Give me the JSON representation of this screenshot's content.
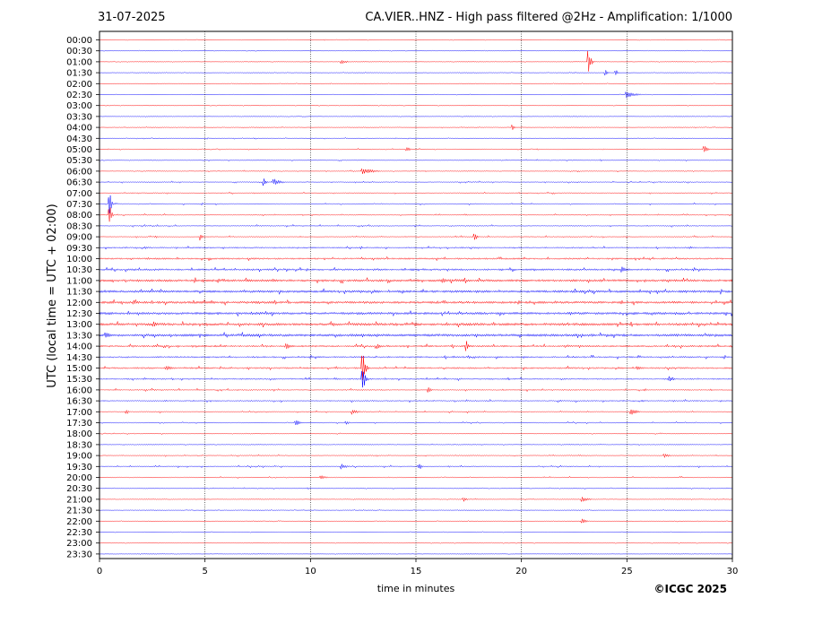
{
  "header": {
    "date": "31-07-2025",
    "title": "CA.VIER..HNZ - High pass filtered @2Hz - Amplification: 1/1000"
  },
  "copyright": "©ICGC 2025",
  "chart_data": {
    "type": "line",
    "subtype": "helicorder",
    "xlabel": "time in minutes",
    "ylabel": "UTC (local time = UTC + 02:00)",
    "xlim": [
      0,
      30
    ],
    "xticks": [
      0,
      5,
      10,
      15,
      20,
      25,
      30
    ],
    "vertical_gridlines_at": [
      5,
      10,
      15,
      20,
      25
    ],
    "row_labels": [
      "00:00",
      "00:30",
      "01:00",
      "01:30",
      "02:00",
      "02:30",
      "03:00",
      "03:30",
      "04:00",
      "04:30",
      "05:00",
      "05:30",
      "06:00",
      "06:30",
      "07:00",
      "07:30",
      "08:00",
      "08:30",
      "09:00",
      "09:30",
      "10:00",
      "10:30",
      "11:00",
      "11:30",
      "12:00",
      "12:30",
      "13:00",
      "13:30",
      "14:00",
      "14:30",
      "15:00",
      "15:30",
      "16:00",
      "16:30",
      "17:00",
      "17:30",
      "18:00",
      "18:30",
      "19:00",
      "19:30",
      "20:00",
      "20:30",
      "21:00",
      "21:30",
      "22:00",
      "22:30",
      "23:00",
      "23:30"
    ],
    "series_colors": {
      "even_rows": "#ff0000",
      "odd_rows": "#0000ff"
    },
    "noise_level": [
      0.3,
      0.3,
      0.3,
      0.3,
      0.3,
      0.3,
      0.3,
      0.35,
      0.4,
      0.4,
      0.45,
      0.45,
      0.45,
      0.5,
      0.55,
      0.55,
      0.55,
      0.6,
      0.6,
      0.8,
      0.9,
      1.0,
      1.3,
      1.3,
      1.3,
      1.3,
      1.4,
      1.4,
      1.0,
      0.9,
      0.9,
      0.8,
      0.7,
      0.7,
      0.6,
      0.5,
      0.4,
      0.4,
      0.5,
      0.6,
      0.5,
      0.4,
      0.4,
      0.35,
      0.35,
      0.3,
      0.3,
      0.3
    ],
    "events": [
      {
        "row": 2,
        "minute": 11.5,
        "amplitude": 2.5,
        "duration": 0.8
      },
      {
        "row": 2,
        "minute": 23.2,
        "amplitude": 12,
        "duration": 0.3
      },
      {
        "row": 3,
        "minute": 24.0,
        "amplitude": 3,
        "duration": 0.3
      },
      {
        "row": 3,
        "minute": 24.5,
        "amplitude": 3,
        "duration": 0.3
      },
      {
        "row": 5,
        "minute": 25.0,
        "amplitude": 4,
        "duration": 1.0
      },
      {
        "row": 8,
        "minute": 19.6,
        "amplitude": 3,
        "duration": 0.3
      },
      {
        "row": 10,
        "minute": 14.6,
        "amplitude": 2.5,
        "duration": 0.4
      },
      {
        "row": 10,
        "minute": 28.7,
        "amplitude": 5,
        "duration": 0.3
      },
      {
        "row": 12,
        "minute": 12.5,
        "amplitude": 3.5,
        "duration": 1.5
      },
      {
        "row": 13,
        "minute": 7.8,
        "amplitude": 4,
        "duration": 0.3
      },
      {
        "row": 13,
        "minute": 8.3,
        "amplitude": 3.5,
        "duration": 1.0
      },
      {
        "row": 15,
        "minute": 0.5,
        "amplitude": 12,
        "duration": 0.2
      },
      {
        "row": 16,
        "minute": 0.5,
        "amplitude": 12,
        "duration": 0.2
      },
      {
        "row": 18,
        "minute": 4.8,
        "amplitude": 4,
        "duration": 0.3
      },
      {
        "row": 18,
        "minute": 17.8,
        "amplitude": 5,
        "duration": 0.3
      },
      {
        "row": 21,
        "minute": 24.8,
        "amplitude": 3.5,
        "duration": 1.0
      },
      {
        "row": 22,
        "minute": 16.3,
        "amplitude": 3,
        "duration": 0.8
      },
      {
        "row": 26,
        "minute": 2.6,
        "amplitude": 4,
        "duration": 0.3
      },
      {
        "row": 27,
        "minute": 0.3,
        "amplitude": 3,
        "duration": 1.0
      },
      {
        "row": 28,
        "minute": 8.9,
        "amplitude": 3,
        "duration": 0.8
      },
      {
        "row": 28,
        "minute": 13.2,
        "amplitude": 3,
        "duration": 0.6
      },
      {
        "row": 28,
        "minute": 17.4,
        "amplitude": 6,
        "duration": 0.3
      },
      {
        "row": 30,
        "minute": 12.5,
        "amplitude": 16,
        "duration": 0.3
      },
      {
        "row": 30,
        "minute": 3.2,
        "amplitude": 2.5,
        "duration": 1.0
      },
      {
        "row": 30,
        "minute": 25.5,
        "amplitude": 2.5,
        "duration": 0.6
      },
      {
        "row": 31,
        "minute": 12.5,
        "amplitude": 14,
        "duration": 0.3
      },
      {
        "row": 31,
        "minute": 27.0,
        "amplitude": 3,
        "duration": 0.6
      },
      {
        "row": 32,
        "minute": 15.6,
        "amplitude": 4,
        "duration": 0.3
      },
      {
        "row": 34,
        "minute": 1.3,
        "amplitude": 3,
        "duration": 0.3
      },
      {
        "row": 34,
        "minute": 12.0,
        "amplitude": 3,
        "duration": 0.8
      },
      {
        "row": 34,
        "minute": 25.2,
        "amplitude": 4,
        "duration": 0.8
      },
      {
        "row": 35,
        "minute": 9.3,
        "amplitude": 3,
        "duration": 0.8
      },
      {
        "row": 35,
        "minute": 11.7,
        "amplitude": 2.5,
        "duration": 0.4
      },
      {
        "row": 38,
        "minute": 26.8,
        "amplitude": 2.5,
        "duration": 0.7
      },
      {
        "row": 39,
        "minute": 11.5,
        "amplitude": 3,
        "duration": 0.7
      },
      {
        "row": 39,
        "minute": 15.2,
        "amplitude": 3,
        "duration": 0.3
      },
      {
        "row": 40,
        "minute": 10.5,
        "amplitude": 2.5,
        "duration": 0.8
      },
      {
        "row": 42,
        "minute": 17.3,
        "amplitude": 3,
        "duration": 0.3
      },
      {
        "row": 42,
        "minute": 22.9,
        "amplitude": 3,
        "duration": 0.8
      },
      {
        "row": 44,
        "minute": 22.9,
        "amplitude": 2.5,
        "duration": 0.6
      }
    ]
  }
}
